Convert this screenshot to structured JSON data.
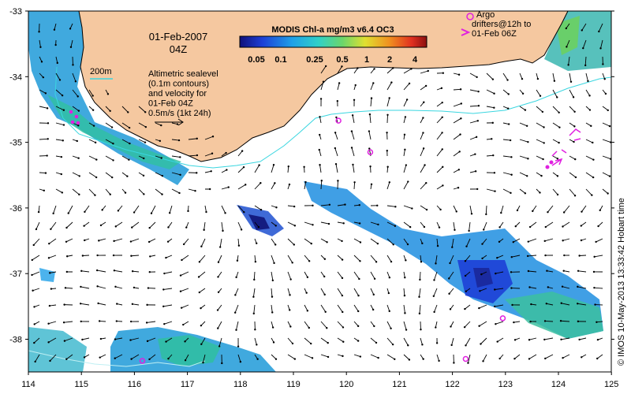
{
  "map": {
    "date_label": "01-Feb-2007",
    "time_label": "04Z",
    "depth_label": "200m",
    "altimetry_lines": [
      "Altimetric sealevel",
      "(0.1m contours)",
      "and velocity for",
      "01-Feb 04Z",
      "0.5m/s (1kt 24h)"
    ],
    "argo_lines": [
      "Argo",
      "drifters@12h to",
      "01-Feb 06Z"
    ],
    "colorbar": {
      "title": "MODIS Chl-a mg/m3 v6.4 OC3",
      "ticks": [
        "0.05",
        "0.1",
        "0.25",
        "0.5",
        "1",
        "2",
        "4"
      ]
    },
    "credit": "© IMOS 10-May-2013 13:33:42 Hobart time",
    "x_ticks": [
      "114",
      "115",
      "116",
      "117",
      "118",
      "119",
      "120",
      "121",
      "122",
      "123",
      "124",
      "125"
    ],
    "y_ticks": [
      "-33",
      "-34",
      "-35",
      "-36",
      "-37",
      "-38"
    ],
    "colors": {
      "land": "#f5c8a0",
      "depth_contour": "#3ad6e0",
      "argo": "#e020e0",
      "vector": "#000000"
    }
  },
  "argo_floats": [
    {
      "lon": 119.85,
      "lat": -34.67
    },
    {
      "lon": 120.45,
      "lat": -35.15
    },
    {
      "lon": 116.15,
      "lat": -38.33
    },
    {
      "lon": 122.95,
      "lat": -37.68
    },
    {
      "lon": 122.25,
      "lat": -38.3
    }
  ]
}
